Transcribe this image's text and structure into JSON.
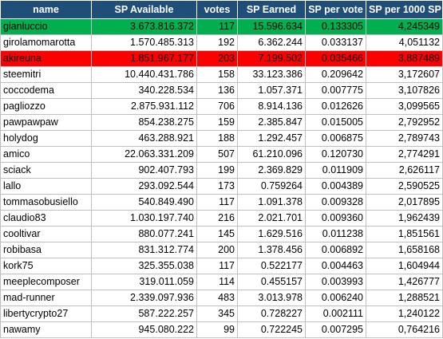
{
  "colors": {
    "header_bg": "#1f4e79",
    "header_text": "#ffffff",
    "highlight_green": "#00b050",
    "highlight_red": "#ff0000",
    "grid": "#bfbfbf"
  },
  "table": {
    "headers": [
      "name",
      "SP Available",
      "votes",
      "SP Earned",
      "SP per vote",
      "SP per 1000 SP"
    ],
    "rows": [
      {
        "name": "gianluccio",
        "sp_available": "3.673.816.372",
        "votes": "117",
        "sp_earned": "15.596.634",
        "sp_per_vote": "0.133305",
        "sp_per_1000": "4,245349",
        "highlight": "green"
      },
      {
        "name": "girolamomarotta",
        "sp_available": "1.570.485.313",
        "votes": "192",
        "sp_earned": "6.362.244",
        "sp_per_vote": "0.033137",
        "sp_per_1000": "4,051132",
        "highlight": ""
      },
      {
        "name": "akireuna",
        "sp_available": "1.851.967.177",
        "votes": "203",
        "sp_earned": "7.199.502",
        "sp_per_vote": "0.035466",
        "sp_per_1000": "3,887489",
        "highlight": "red"
      },
      {
        "name": "steemitri",
        "sp_available": "10.440.431.786",
        "votes": "158",
        "sp_earned": "33.123.386",
        "sp_per_vote": "0.209642",
        "sp_per_1000": "3,172607",
        "highlight": ""
      },
      {
        "name": "coccodema",
        "sp_available": "340.228.534",
        "votes": "136",
        "sp_earned": "1.057.371",
        "sp_per_vote": "0.007775",
        "sp_per_1000": "3,107826",
        "highlight": ""
      },
      {
        "name": "pagliozzo",
        "sp_available": "2.875.931.112",
        "votes": "706",
        "sp_earned": "8.914.136",
        "sp_per_vote": "0.012626",
        "sp_per_1000": "3,099565",
        "highlight": ""
      },
      {
        "name": "pawpawpaw",
        "sp_available": "854.238.275",
        "votes": "159",
        "sp_earned": "2.385.847",
        "sp_per_vote": "0.015005",
        "sp_per_1000": "2,792952",
        "highlight": ""
      },
      {
        "name": "holydog",
        "sp_available": "463.288.921",
        "votes": "188",
        "sp_earned": "1.292.457",
        "sp_per_vote": "0.006875",
        "sp_per_1000": "2,789743",
        "highlight": ""
      },
      {
        "name": "amico",
        "sp_available": "22.063.331.209",
        "votes": "507",
        "sp_earned": "61.210.096",
        "sp_per_vote": "0.120730",
        "sp_per_1000": "2,774291",
        "highlight": ""
      },
      {
        "name": "sciack",
        "sp_available": "902.407.793",
        "votes": "199",
        "sp_earned": "2.369.829",
        "sp_per_vote": "0.011909",
        "sp_per_1000": "2,626117",
        "highlight": ""
      },
      {
        "name": "lallo",
        "sp_available": "293.092.544",
        "votes": "173",
        "sp_earned": "0.759264",
        "sp_per_vote": "0.004389",
        "sp_per_1000": "2,590525",
        "highlight": ""
      },
      {
        "name": "tommasobusiello",
        "sp_available": "540.849.490",
        "votes": "117",
        "sp_earned": "1.091.378",
        "sp_per_vote": "0.009328",
        "sp_per_1000": "2,017895",
        "highlight": ""
      },
      {
        "name": "claudio83",
        "sp_available": "1.030.197.740",
        "votes": "216",
        "sp_earned": "2.021.701",
        "sp_per_vote": "0.009360",
        "sp_per_1000": "1,962439",
        "highlight": ""
      },
      {
        "name": "cooltivar",
        "sp_available": "880.077.241",
        "votes": "145",
        "sp_earned": "1.629.516",
        "sp_per_vote": "0.011238",
        "sp_per_1000": "1,851561",
        "highlight": ""
      },
      {
        "name": "robibasa",
        "sp_available": "831.312.774",
        "votes": "200",
        "sp_earned": "1.378.456",
        "sp_per_vote": "0.006892",
        "sp_per_1000": "1,658168",
        "highlight": ""
      },
      {
        "name": "kork75",
        "sp_available": "325.355.038",
        "votes": "117",
        "sp_earned": "0.522177",
        "sp_per_vote": "0.004463",
        "sp_per_1000": "1,604944",
        "highlight": ""
      },
      {
        "name": "meeplecomposer",
        "sp_available": "319.011.059",
        "votes": "114",
        "sp_earned": "0.455157",
        "sp_per_vote": "0.003993",
        "sp_per_1000": "1,426777",
        "highlight": ""
      },
      {
        "name": "mad-runner",
        "sp_available": "2.339.097.936",
        "votes": "483",
        "sp_earned": "3.013.978",
        "sp_per_vote": "0.006240",
        "sp_per_1000": "1,288521",
        "highlight": ""
      },
      {
        "name": "libertycrypto27",
        "sp_available": "587.222.257",
        "votes": "345",
        "sp_earned": "0.728227",
        "sp_per_vote": "0.002111",
        "sp_per_1000": "1,240122",
        "highlight": ""
      },
      {
        "name": "nawamy",
        "sp_available": "945.080.222",
        "votes": "99",
        "sp_earned": "0.722245",
        "sp_per_vote": "0.007295",
        "sp_per_1000": "0,764216",
        "highlight": ""
      }
    ]
  }
}
